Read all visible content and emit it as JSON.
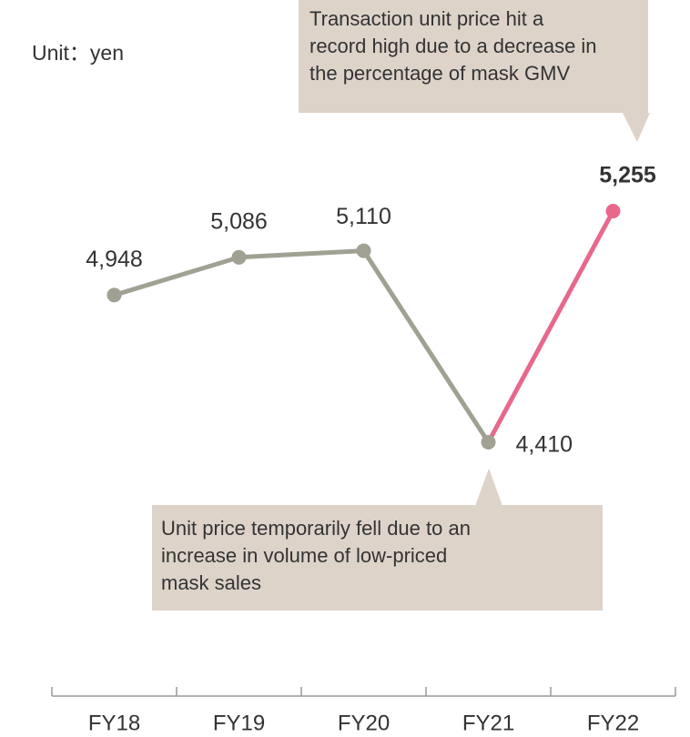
{
  "chart_data": {
    "type": "line",
    "unit_label": "Unit：yen",
    "categories": [
      "FY18",
      "FY19",
      "FY20",
      "FY21",
      "FY22"
    ],
    "values": [
      4948,
      5086,
      5110,
      4410,
      5255
    ],
    "value_labels": [
      "4,948",
      "5,086",
      "5,110",
      "4,410",
      "5,255"
    ],
    "color": "#a0a192",
    "highlight_color": "#e8688c",
    "annotations": [
      {
        "lines": [
          "Transaction unit price hit a",
          "record high due to a decrease in",
          "the percentage of mask GMV"
        ]
      },
      {
        "lines": [
          "Unit price temporarily fell due to an",
          "increase in volume of low-priced",
          "mask sales"
        ]
      }
    ]
  }
}
